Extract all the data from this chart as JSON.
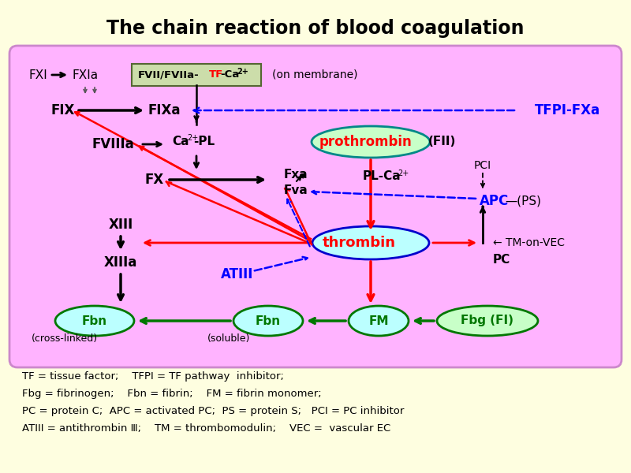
{
  "title": "The chain reaction of blood coagulation",
  "bg_outer": "#FEFEE0",
  "bg_inner": "#FFB3FF",
  "title_color": "#000000",
  "title_fontsize": 17,
  "legend_lines": [
    "TF = tissue factor;    TFPI = TF pathway  inhibitor;",
    "Fbg = fibrinogen;    Fbn = fibrin;    FM = fibrin monomer;",
    "PC = protein C;  APC = activated PC;  PS = protein S;   PCI = PC inhibitor",
    "ATIII = antithrombin Ⅲ;    TM = thrombomodulin;    VEC =  vascular EC"
  ]
}
